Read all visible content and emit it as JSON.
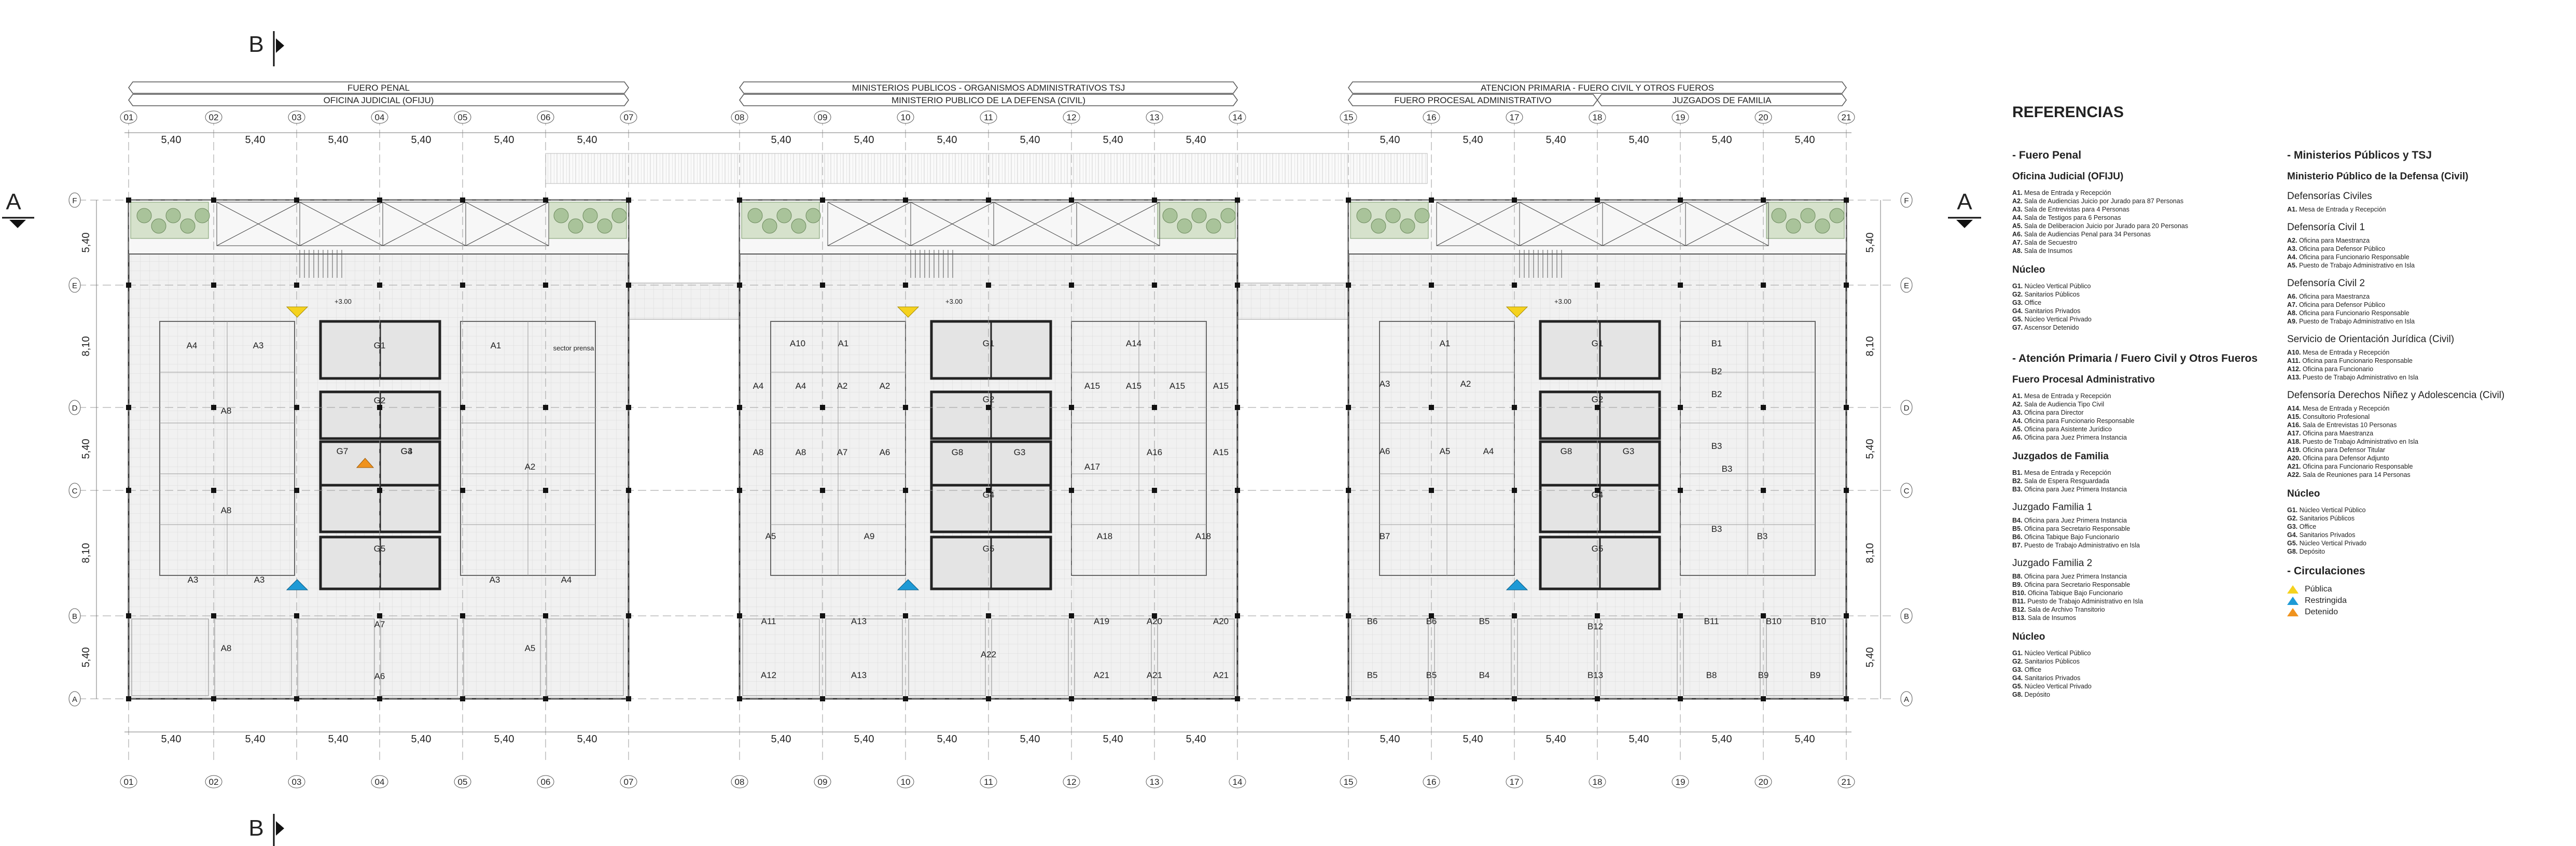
{
  "section_marks": {
    "B_top": "B",
    "B_bottom": "B",
    "A_left": "A",
    "A_right": "A"
  },
  "headers": [
    {
      "top": "FUERO PENAL",
      "bottom": "OFICINA JUDICIAL (OFIJU)"
    },
    {
      "top": "MINISTERIOS PUBLICOS - ORGANISMOS ADMINISTRATIVOS TSJ",
      "bottom": "MINISTERIO PUBLICO DE LA DEFENSA (CIVIL)"
    },
    {
      "top": "ATENCION PRIMARIA - FUERO CIVIL Y OTROS FUEROS",
      "bottom_left": "FUERO PROCESAL ADMINISTRATIVO",
      "bottom_right": "JUZGADOS DE FAMILIA"
    }
  ],
  "axes_x": [
    "01",
    "02",
    "03",
    "04",
    "05",
    "06",
    "07",
    "08",
    "09",
    "10",
    "11",
    "12",
    "13",
    "14",
    "15",
    "16",
    "17",
    "18",
    "19",
    "20",
    "21"
  ],
  "axes_y": [
    "F",
    "E",
    "D",
    "C",
    "B",
    "A"
  ],
  "dim_x": "5,40",
  "dims_y": [
    "5,40",
    "8,10",
    "5,40",
    "8,10",
    "5,40"
  ],
  "level": "+3.00",
  "room_labels": {
    "b1": [
      "A4",
      "A3",
      "G1",
      "A1",
      "sector prensa",
      "A8",
      "G2",
      "G3",
      "G7",
      "G4",
      "A2",
      "A8",
      "G5",
      "A3",
      "A3",
      "A3",
      "A4",
      "A7",
      "A5",
      "A8",
      "A6"
    ],
    "b2": [
      "A10",
      "A1",
      "G1",
      "A14",
      "A4",
      "A4",
      "A2",
      "A2",
      "G2",
      "A15",
      "A15",
      "A15",
      "A15",
      "A8",
      "A8",
      "A7",
      "A6",
      "G8",
      "G3",
      "A16",
      "A15",
      "A17",
      "G4",
      "A5",
      "A9",
      "G5",
      "A18",
      "A18",
      "A11",
      "A13",
      "A19",
      "A20",
      "A20",
      "A12",
      "A13",
      "A22",
      "A21",
      "A21",
      "A21"
    ],
    "b3": [
      "A1",
      "G1",
      "B1",
      "A3",
      "A2",
      "G2",
      "B2",
      "B2",
      "A6",
      "A5",
      "A4",
      "G8",
      "G3",
      "B3",
      "B3",
      "G4",
      "B7",
      "G5",
      "B3",
      "B3",
      "B6",
      "B6",
      "B5",
      "B12",
      "B11",
      "B10",
      "B10",
      "B5",
      "B5",
      "B4",
      "B13",
      "B8",
      "B9",
      "B9"
    ]
  },
  "legend": {
    "title": "REFERENCIAS",
    "col1": [
      {
        "kind": "sec",
        "text": "- Fuero Penal"
      },
      {
        "kind": "sub",
        "text": "Oficina Judicial (OFIJU)"
      },
      {
        "kind": "item",
        "code": "A1.",
        "text": "Mesa de Entrada y Recepción"
      },
      {
        "kind": "item",
        "code": "A2.",
        "text": "Sala de Audiencias Juicio por Jurado para 87 Personas"
      },
      {
        "kind": "item",
        "code": "A3.",
        "text": "Sala de Entrevistas para 4 Personas"
      },
      {
        "kind": "item",
        "code": "A4.",
        "text": "Sala de Testigos para 6 Personas"
      },
      {
        "kind": "item",
        "code": "A5.",
        "text": "Sala de Deliberacion Juicio por Jurado para 20 Personas"
      },
      {
        "kind": "item",
        "code": "A6.",
        "text": "Sala de Audiencias Penal para 34 Personas"
      },
      {
        "kind": "item",
        "code": "A7.",
        "text": "Sala de Secuestro"
      },
      {
        "kind": "item",
        "code": "A8.",
        "text": "Sala de Insumos"
      },
      {
        "kind": "sub",
        "text": "Núcleo"
      },
      {
        "kind": "item",
        "code": "G1.",
        "text": "Núcleo Vertical Público"
      },
      {
        "kind": "item",
        "code": "G2.",
        "text": "Sanitarios Públicos"
      },
      {
        "kind": "item",
        "code": "G3.",
        "text": "Office"
      },
      {
        "kind": "item",
        "code": "G4.",
        "text": "Sanitarios Privados"
      },
      {
        "kind": "item",
        "code": "G5.",
        "text": "Núcleo Vertical Privado"
      },
      {
        "kind": "item",
        "code": "G7.",
        "text": "Ascensor Detenido"
      },
      {
        "kind": "gap"
      },
      {
        "kind": "sec",
        "text": "- Atención Primaria / Fuero Civil y Otros Fueros"
      },
      {
        "kind": "sub",
        "text": "Fuero Procesal Administrativo"
      },
      {
        "kind": "item",
        "code": "A1.",
        "text": "Mesa de Entrada y Recepción"
      },
      {
        "kind": "item",
        "code": "A2.",
        "text": "Sala de Audiencia Tipo Civil"
      },
      {
        "kind": "item",
        "code": "A3.",
        "text": "Oficina para Director"
      },
      {
        "kind": "item",
        "code": "A4.",
        "text": "Oficina para Funcionario Responsable"
      },
      {
        "kind": "item",
        "code": "A5.",
        "text": "Oficina para Asistente Jurídico"
      },
      {
        "kind": "item",
        "code": "A6.",
        "text": "Oficina para Juez Primera Instancia"
      },
      {
        "kind": "sub",
        "text": "Juzgados de Familia"
      },
      {
        "kind": "item",
        "code": "B1.",
        "text": "Mesa de Entrada y Recepción"
      },
      {
        "kind": "item",
        "code": "B2.",
        "text": "Sala de Espera Resguardada"
      },
      {
        "kind": "item",
        "code": "B3.",
        "text": "Oficina para Juez Primera Instancia"
      },
      {
        "kind": "sub2",
        "text": "Juzgado Familia 1"
      },
      {
        "kind": "item",
        "code": "B4.",
        "text": "Oficina para Juez Primera Instancia"
      },
      {
        "kind": "item",
        "code": "B5.",
        "text": "Oficina para Secretario Responsable"
      },
      {
        "kind": "item",
        "code": "B6.",
        "text": "Oficina Tabique Bajo Funcionario"
      },
      {
        "kind": "item",
        "code": "B7.",
        "text": "Puesto de Trabajo Administrativo en Isla"
      },
      {
        "kind": "sub2",
        "text": "Juzgado Familia 2"
      },
      {
        "kind": "item",
        "code": "B8.",
        "text": "Oficina para Juez Primera Instancia"
      },
      {
        "kind": "item",
        "code": "B9.",
        "text": "Oficina para Secretario Responsable"
      },
      {
        "kind": "item",
        "code": "B10.",
        "text": "Oficina Tabique Bajo Funcionario"
      },
      {
        "kind": "item",
        "code": "B11.",
        "text": "Puesto de Trabajo Administrativo en Isla"
      },
      {
        "kind": "item",
        "code": "B12.",
        "text": "Sala de Archivo Transitorio"
      },
      {
        "kind": "item",
        "code": "B13.",
        "text": "Sala de Insumos"
      },
      {
        "kind": "sub",
        "text": "Núcleo"
      },
      {
        "kind": "item",
        "code": "G1.",
        "text": "Núcleo Vertical Público"
      },
      {
        "kind": "item",
        "code": "G2.",
        "text": "Sanitarios Públicos"
      },
      {
        "kind": "item",
        "code": "G3.",
        "text": "Office"
      },
      {
        "kind": "item",
        "code": "G4.",
        "text": "Sanitarios Privados"
      },
      {
        "kind": "item",
        "code": "G5.",
        "text": "Núcleo Vertical Privado"
      },
      {
        "kind": "item",
        "code": "G8.",
        "text": "Depósito"
      }
    ],
    "col2": [
      {
        "kind": "sec",
        "text": "- Ministerios Públicos y TSJ"
      },
      {
        "kind": "sub",
        "text": "Ministerio Público de la Defensa (Civil)"
      },
      {
        "kind": "sub2",
        "text": "Defensorías Civiles"
      },
      {
        "kind": "item",
        "code": "A1.",
        "text": "Mesa de Entrada y Recepción"
      },
      {
        "kind": "sub2",
        "text": "Defensoría Civil 1"
      },
      {
        "kind": "item",
        "code": "A2.",
        "text": "Oficina para Maestranza"
      },
      {
        "kind": "item",
        "code": "A3.",
        "text": "Oficina para Defensor Público"
      },
      {
        "kind": "item",
        "code": "A4.",
        "text": "Oficina para Funcionario Responsable"
      },
      {
        "kind": "item",
        "code": "A5.",
        "text": "Puesto de Trabajo Administrativo en Isla"
      },
      {
        "kind": "sub2",
        "text": "Defensoría Civil 2"
      },
      {
        "kind": "item",
        "code": "A6.",
        "text": "Oficina para Maestranza"
      },
      {
        "kind": "item",
        "code": "A7.",
        "text": "Oficina para Defensor Público"
      },
      {
        "kind": "item",
        "code": "A8.",
        "text": "Oficina para Funcionario Responsable"
      },
      {
        "kind": "item",
        "code": "A9.",
        "text": "Puesto de Trabajo Administrativo en Isla"
      },
      {
        "kind": "sub2",
        "text": "Servicio de Orientación Jurídica (Civil)"
      },
      {
        "kind": "item",
        "code": "A10.",
        "text": "Mesa de Entrada y Recepción"
      },
      {
        "kind": "item",
        "code": "A11.",
        "text": "Oficina para Funcionario Responsable"
      },
      {
        "kind": "item",
        "code": "A12.",
        "text": "Oficina para Funcionario"
      },
      {
        "kind": "item",
        "code": "A13.",
        "text": "Puesto de Trabajo Administrativo en Isla"
      },
      {
        "kind": "sub2",
        "text": "Defensoría Derechos Niñez y Adolescencia (Civil)"
      },
      {
        "kind": "item",
        "code": "A14.",
        "text": "Mesa de Entrada y Recepción"
      },
      {
        "kind": "item",
        "code": "A15.",
        "text": "Consultorio Profesional"
      },
      {
        "kind": "item",
        "code": "A16.",
        "text": "Sala de Entrevistas 10 Personas"
      },
      {
        "kind": "item",
        "code": "A17.",
        "text": "Oficina para Maestranza"
      },
      {
        "kind": "item",
        "code": "A18.",
        "text": "Puesto de Trabajo Administrativo en Isla"
      },
      {
        "kind": "item",
        "code": "A19.",
        "text": "Oficina para Defensor Titular"
      },
      {
        "kind": "item",
        "code": "A20.",
        "text": "Oficina para Defensor Adjunto"
      },
      {
        "kind": "item",
        "code": "A21.",
        "text": "Oficina para Funcionario Responsable"
      },
      {
        "kind": "item",
        "code": "A22.",
        "text": "Sala de Reuniones para 14 Personas"
      },
      {
        "kind": "sub",
        "text": "Núcleo"
      },
      {
        "kind": "item",
        "code": "G1.",
        "text": "Núcleo Vertical Público"
      },
      {
        "kind": "item",
        "code": "G2.",
        "text": "Sanitarios Públicos"
      },
      {
        "kind": "item",
        "code": "G3.",
        "text": "Office"
      },
      {
        "kind": "item",
        "code": "G4.",
        "text": "Sanitarios Privados"
      },
      {
        "kind": "item",
        "code": "G5.",
        "text": "Núcleo Vertical Privado"
      },
      {
        "kind": "item",
        "code": "G8.",
        "text": "Depósito"
      },
      {
        "kind": "sec",
        "text": "- Circulaciones"
      },
      {
        "kind": "circ",
        "text": "Pública",
        "color": "#f5d21e"
      },
      {
        "kind": "circ",
        "text": "Restringida",
        "color": "#1e9ad6"
      },
      {
        "kind": "circ",
        "text": "Detenido",
        "color": "#f0931e"
      }
    ]
  }
}
